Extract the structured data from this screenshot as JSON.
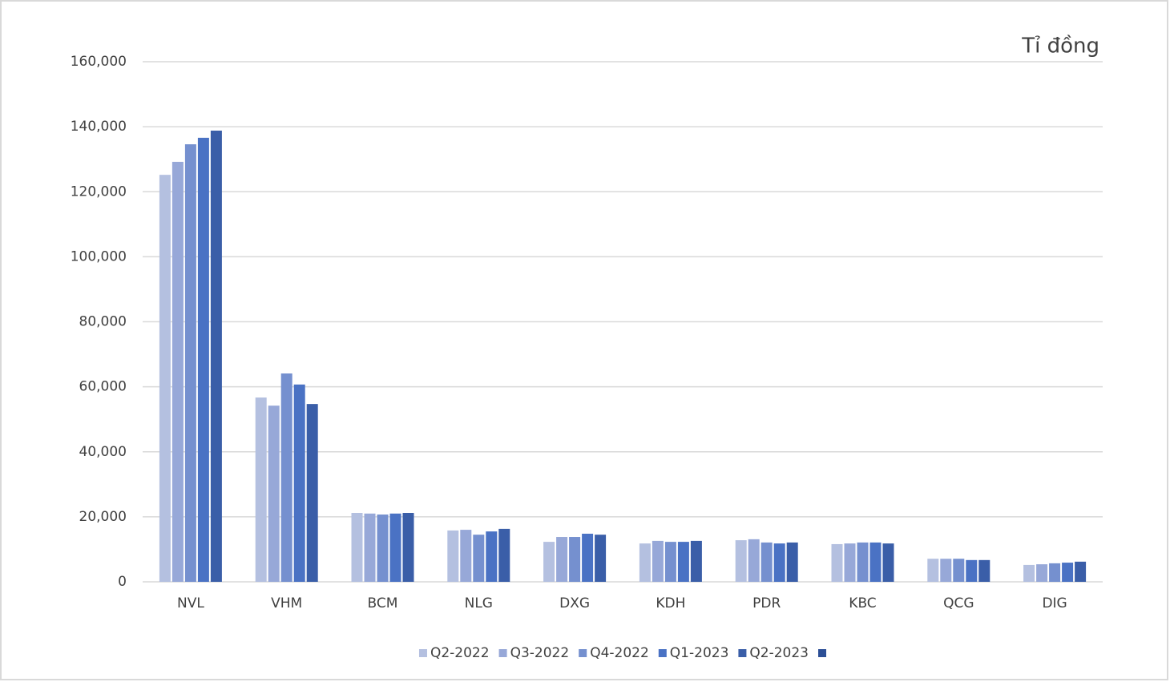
{
  "chart_data": {
    "type": "bar",
    "unit_label": "Tỉ đồng",
    "categories": [
      "NVL",
      "VHM",
      "BCM",
      "NLG",
      "DXG",
      "KDH",
      "PDR",
      "KBC",
      "QCG",
      "DIG"
    ],
    "series": [
      {
        "name": "Q2-2022",
        "color": "#b4c0e0",
        "values": [
          125200,
          56700,
          21200,
          15800,
          12300,
          11800,
          12800,
          11600,
          7100,
          5200
        ]
      },
      {
        "name": "Q3-2022",
        "color": "#97a8d8",
        "values": [
          129200,
          54200,
          21000,
          16000,
          13800,
          12600,
          13100,
          11800,
          7100,
          5400
        ]
      },
      {
        "name": "Q4-2022",
        "color": "#7590cf",
        "values": [
          134600,
          64100,
          20700,
          14500,
          13800,
          12300,
          12100,
          12100,
          7100,
          5700
        ]
      },
      {
        "name": "Q1-2023",
        "color": "#4a72c4",
        "values": [
          136600,
          60700,
          21000,
          15500,
          14800,
          12300,
          11800,
          12100,
          6700,
          5900
        ]
      },
      {
        "name": "Q2-2023",
        "color": "#3a5ea8",
        "values": [
          138800,
          54700,
          21200,
          16300,
          14500,
          12600,
          12100,
          11800,
          6700,
          6200
        ]
      },
      {
        "name": null,
        "color": "#2c4f96",
        "values": [
          null,
          null,
          null,
          null,
          null,
          null,
          null,
          null,
          null,
          null
        ]
      }
    ],
    "ylim": [
      0,
      160000
    ],
    "yticks": [
      0,
      {
        "value": 20000,
        "label": "20,000"
      },
      {
        "value": 40000,
        "label": "40,000"
      },
      {
        "value": 60000,
        "label": "60,000"
      },
      {
        "value": 80000,
        "label": "80,000"
      },
      {
        "value": 100000,
        "label": "100,000"
      },
      {
        "value": 120000,
        "label": "120,000"
      },
      {
        "value": 140000,
        "label": "140,000"
      },
      {
        "value": 160000,
        "label": "160,000"
      }
    ],
    "grid": true,
    "legend": "bottom"
  }
}
